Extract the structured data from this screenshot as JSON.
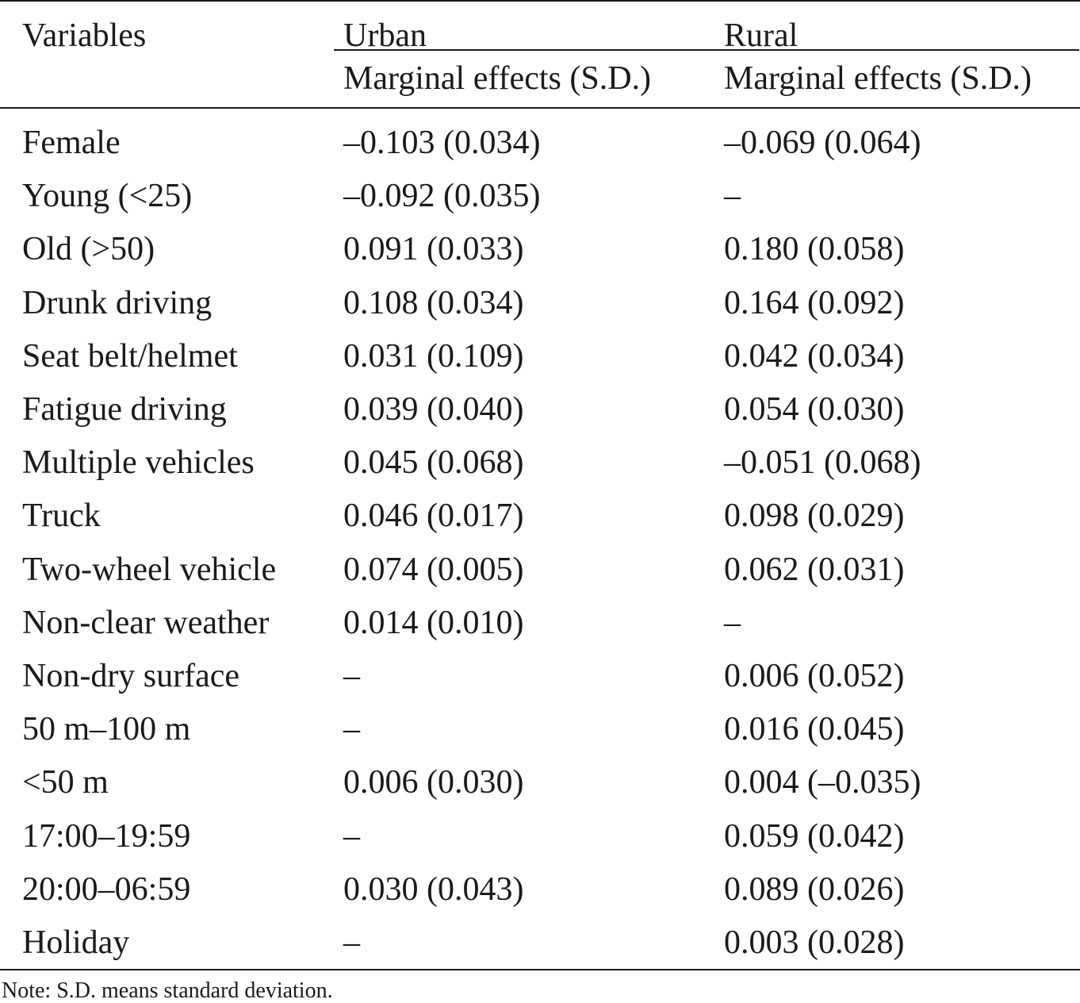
{
  "table": {
    "header": {
      "variables": "Variables",
      "urban": "Urban",
      "rural": "Rural",
      "urban_sub": "Marginal effects (S.D.)",
      "rural_sub": "Marginal effects (S.D.)"
    },
    "rows": [
      {
        "variable": "Female",
        "urban": "–0.103 (0.034)",
        "rural": "–0.069 (0.064)"
      },
      {
        "variable": "Young (<25)",
        "urban": "–0.092 (0.035)",
        "rural": "–"
      },
      {
        "variable": "Old (>50)",
        "urban": "0.091 (0.033)",
        "rural": "0.180 (0.058)"
      },
      {
        "variable": "Drunk driving",
        "urban": "0.108 (0.034)",
        "rural": "0.164 (0.092)"
      },
      {
        "variable": "Seat belt/helmet",
        "urban": "0.031 (0.109)",
        "rural": "0.042 (0.034)"
      },
      {
        "variable": "Fatigue driving",
        "urban": "0.039 (0.040)",
        "rural": "0.054 (0.030)"
      },
      {
        "variable": "Multiple vehicles",
        "urban": "0.045 (0.068)",
        "rural": "–0.051 (0.068)"
      },
      {
        "variable": "Truck",
        "urban": "0.046 (0.017)",
        "rural": "0.098 (0.029)"
      },
      {
        "variable": "Two-wheel vehicle",
        "urban": "0.074 (0.005)",
        "rural": "0.062 (0.031)"
      },
      {
        "variable": "Non-clear weather",
        "urban": "0.014 (0.010)",
        "rural": "–"
      },
      {
        "variable": "Non-dry surface",
        "urban": "–",
        "rural": "0.006 (0.052)"
      },
      {
        "variable": "50 m–100 m",
        "urban": "–",
        "rural": "0.016 (0.045)"
      },
      {
        "variable": "<50 m",
        "urban": "0.006 (0.030)",
        "rural": "0.004 (–0.035)"
      },
      {
        "variable": "17:00–19:59",
        "urban": "–",
        "rural": "0.059 (0.042)"
      },
      {
        "variable": "20:00–06:59",
        "urban": "0.030 (0.043)",
        "rural": "0.089 (0.026)"
      },
      {
        "variable": "Holiday",
        "urban": "–",
        "rural": "0.003 (0.028)"
      }
    ],
    "note": "Note: S.D. means standard deviation."
  }
}
